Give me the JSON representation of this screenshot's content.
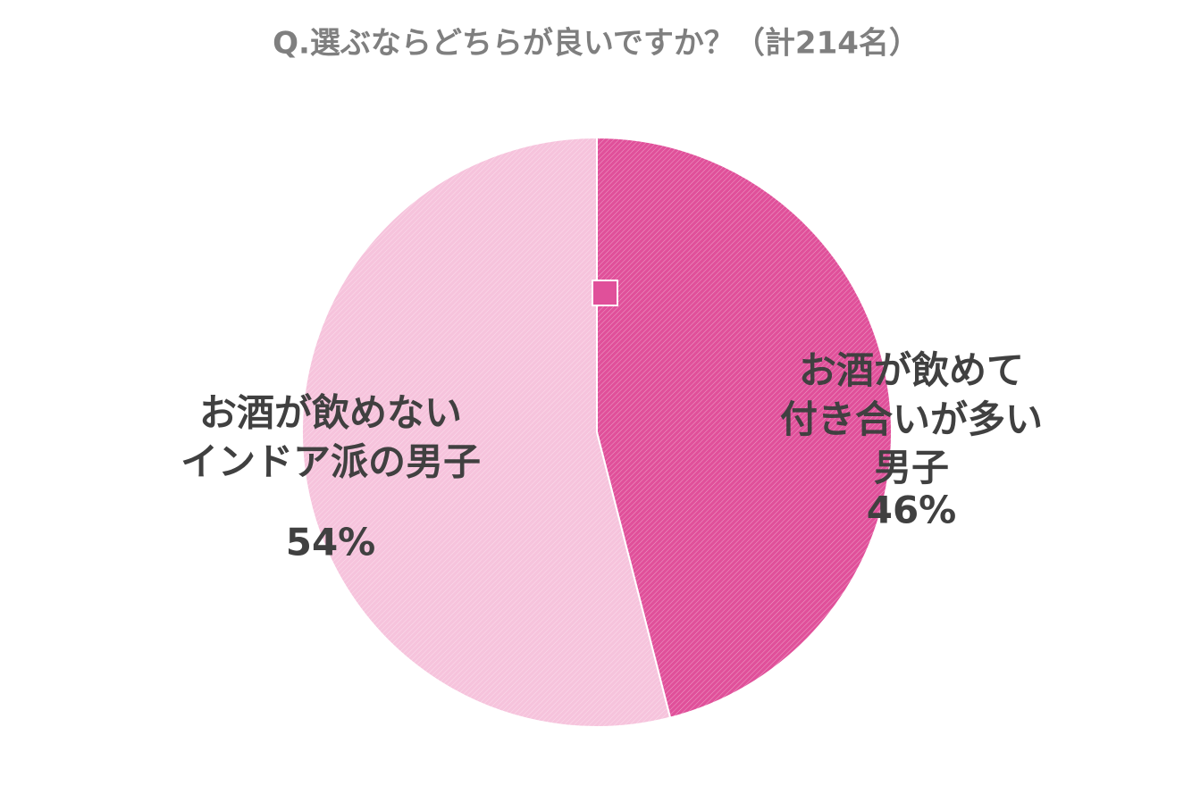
{
  "chart_data": {
    "type": "pie",
    "title": "Q.選ぶならどちらが良いですか？（計214名）",
    "categories": [
      "お酒が飲めて\n付き合いが多い男子",
      "お酒が飲めない\nインドア派の男子"
    ],
    "values": [
      46,
      54
    ],
    "value_labels": [
      "46%",
      "54%"
    ],
    "colors": [
      "#e0509a",
      "#f6c3dc"
    ]
  }
}
